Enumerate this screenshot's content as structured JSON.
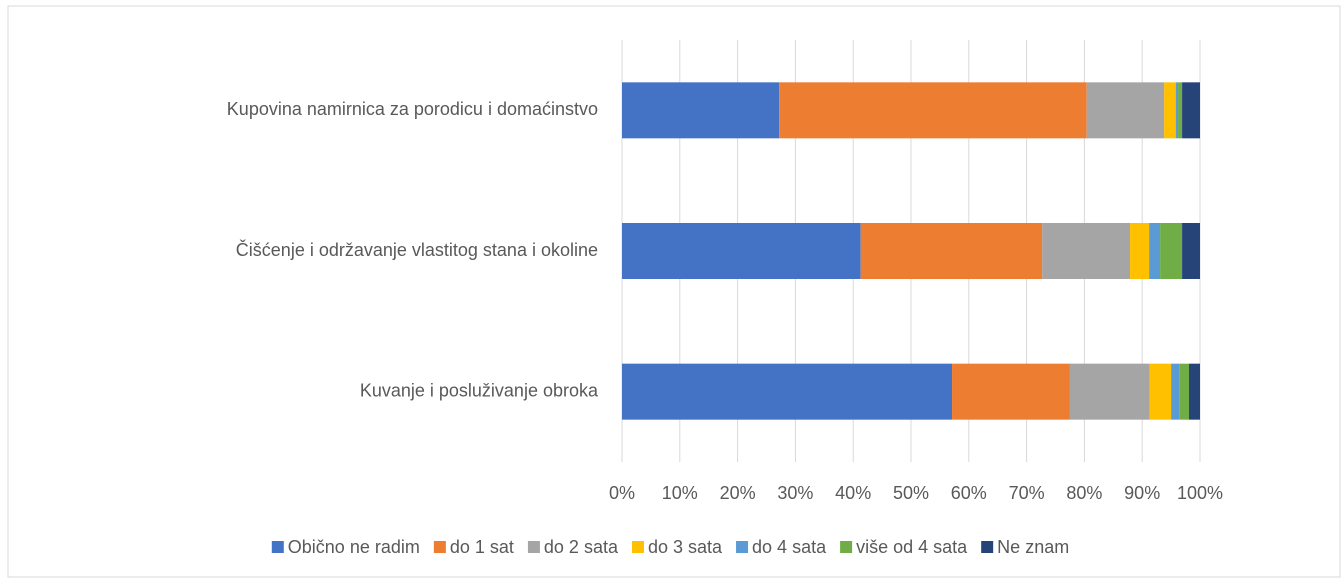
{
  "chart_data": {
    "type": "stacked_barh",
    "categories": [
      "Kupovina namirnica za porodicu i domaćinstvo",
      "Čišćenje i održavanje vlastitog stana i okoline",
      "Kuvanje i posluživanje obroka"
    ],
    "series": [
      {
        "name": "Obično ne radim",
        "color": "#4472c4",
        "values": [
          27.2,
          41.3,
          57.1
        ]
      },
      {
        "name": "do 1 sat",
        "color": "#ed7d31",
        "values": [
          53.2,
          31.4,
          20.4
        ]
      },
      {
        "name": "do 2 sata",
        "color": "#a5a5a5",
        "values": [
          13.4,
          15.2,
          13.8
        ]
      },
      {
        "name": "do 3 sata",
        "color": "#ffc000",
        "values": [
          2.0,
          3.3,
          3.7
        ]
      },
      {
        "name": "do 4 sata",
        "color": "#5b9bd5",
        "values": [
          0.4,
          1.9,
          1.5
        ]
      },
      {
        "name": "više od 4 sata",
        "color": "#70ad47",
        "values": [
          0.7,
          3.8,
          1.6
        ]
      },
      {
        "name": "Ne znam",
        "color": "#264478",
        "values": [
          3.1,
          3.1,
          1.9
        ]
      }
    ],
    "xlim": [
      0,
      100
    ],
    "xticks": [
      {
        "value": 0,
        "label": "0%"
      },
      {
        "value": 10,
        "label": "10%"
      },
      {
        "value": 20,
        "label": "20%"
      },
      {
        "value": 30,
        "label": "30%"
      },
      {
        "value": 40,
        "label": "40%"
      },
      {
        "value": 50,
        "label": "50%"
      },
      {
        "value": 60,
        "label": "60%"
      },
      {
        "value": 70,
        "label": "70%"
      },
      {
        "value": 80,
        "label": "80%"
      },
      {
        "value": 90,
        "label": "90%"
      },
      {
        "value": 100,
        "label": "100%"
      }
    ],
    "grid": true,
    "legend": "bottom"
  }
}
